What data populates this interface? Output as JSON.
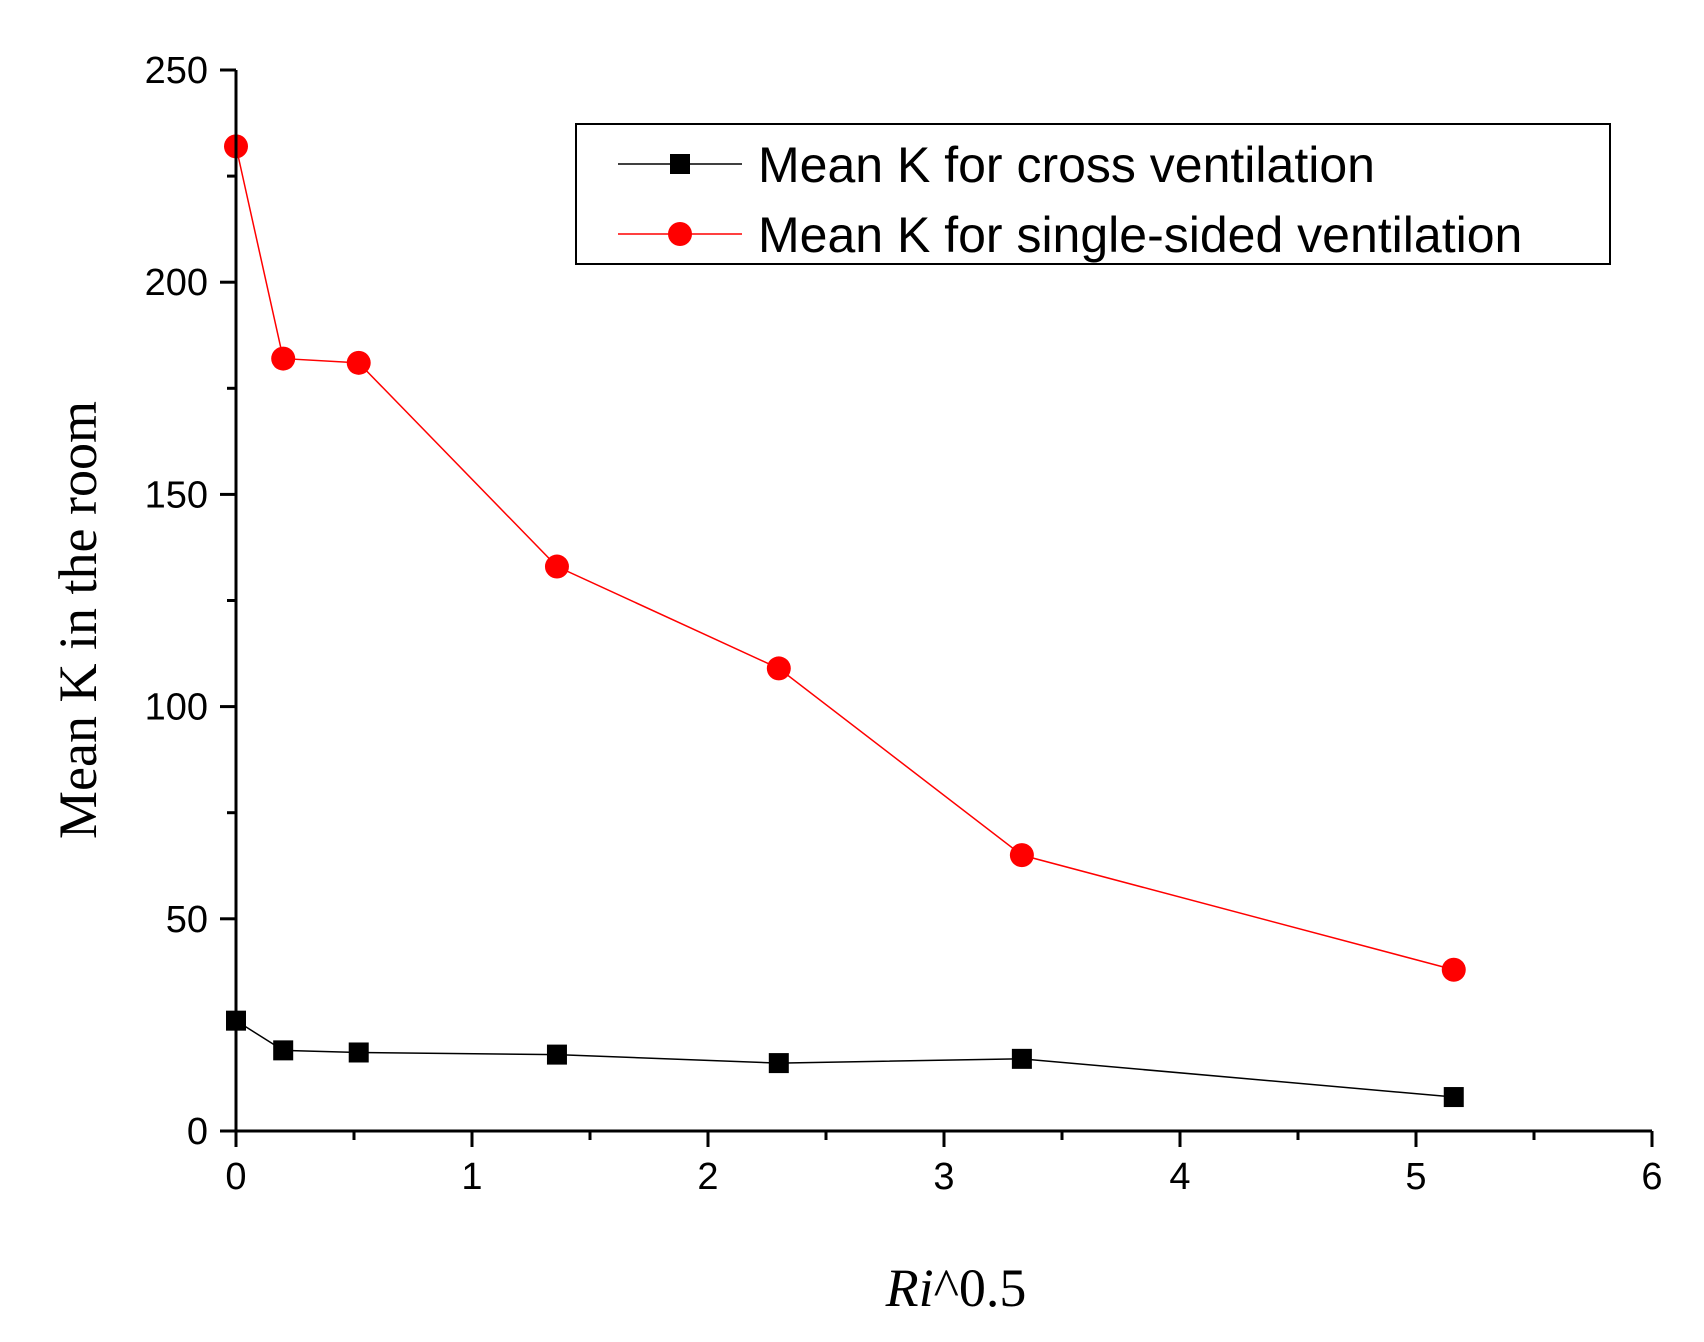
{
  "chart_data": {
    "type": "line",
    "title": "",
    "xlabel_italic": "Ri",
    "xlabel_rest": "^0.5",
    "ylabel": "Mean K in the room",
    "xlim": [
      0,
      6
    ],
    "ylim": [
      0,
      250
    ],
    "x_ticks": [
      "0",
      "1",
      "2",
      "3",
      "4",
      "5",
      "6"
    ],
    "y_ticks": [
      "0",
      "50",
      "100",
      "150",
      "200",
      "250"
    ],
    "grid": false,
    "legend_position": "top-right",
    "x": [
      0,
      0.2,
      0.52,
      1.36,
      2.3,
      3.33,
      5.16
    ],
    "series": [
      {
        "name": "Mean K for cross ventilation",
        "color": "#000000",
        "marker": "square",
        "values": [
          26,
          19,
          18.5,
          18,
          16,
          17,
          8
        ]
      },
      {
        "name": "Mean K for single-sided ventilation",
        "color": "#ff0000",
        "marker": "circle",
        "values": [
          232,
          182,
          181,
          133,
          109,
          65,
          38
        ]
      }
    ]
  }
}
